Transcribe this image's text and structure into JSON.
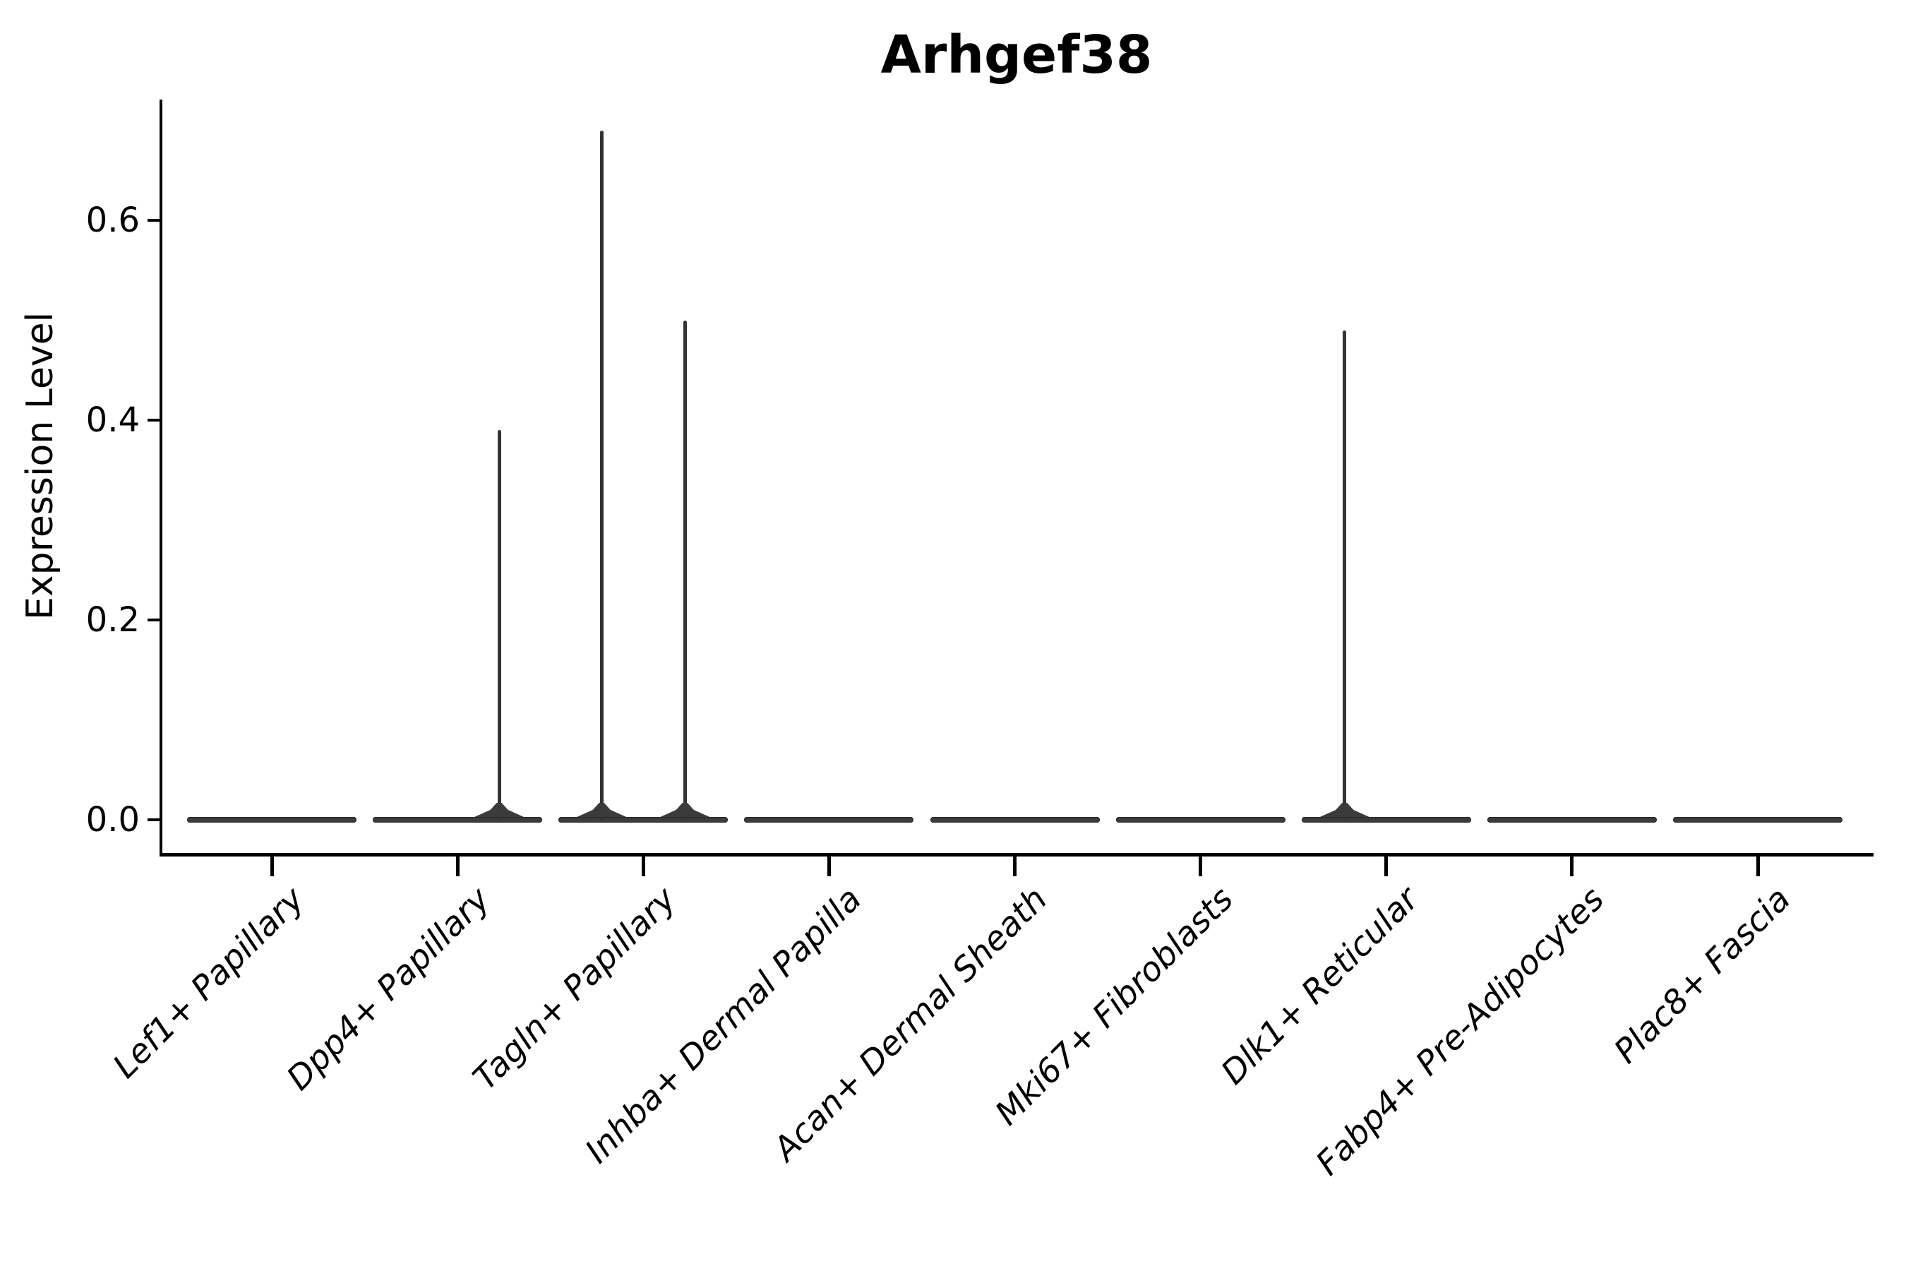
{
  "chart_data": {
    "type": "violin",
    "title": "Arhgef38",
    "ylabel": "Expression Level",
    "xlabel": "",
    "grid": false,
    "legend": null,
    "ylim": [
      0,
      0.72
    ],
    "ytick_labels": [
      "0.0",
      "0.2",
      "0.4",
      "0.6"
    ],
    "ytick_values": [
      0.0,
      0.2,
      0.4,
      0.6
    ],
    "categories": [
      "Lef1+ Papillary",
      "Dpp4+ Papillary",
      "Tagln+ Papillary",
      "Inhba+ Dermal Papilla",
      "Acan+ Dermal Sheath",
      "Mki67+ Fibroblasts",
      "Dlk1+ Reticular",
      "Fabp4+ Pre-Adipocytes",
      "Plac8+ Fascia"
    ],
    "violins": [
      {
        "category": "Lef1+ Papillary",
        "baseline_value": 0.0,
        "spikes": []
      },
      {
        "category": "Dpp4+ Papillary",
        "baseline_value": 0.0,
        "spikes": [
          {
            "side": "right",
            "max_value": 0.39
          }
        ]
      },
      {
        "category": "Tagln+ Papillary",
        "baseline_value": 0.0,
        "spikes": [
          {
            "side": "left",
            "max_value": 0.69
          },
          {
            "side": "right",
            "max_value": 0.5
          }
        ]
      },
      {
        "category": "Inhba+ Dermal Papilla",
        "baseline_value": 0.0,
        "spikes": []
      },
      {
        "category": "Acan+ Dermal Sheath",
        "baseline_value": 0.0,
        "spikes": []
      },
      {
        "category": "Mki67+ Fibroblasts",
        "baseline_value": 0.0,
        "spikes": []
      },
      {
        "category": "Dlk1+ Reticular",
        "baseline_value": 0.0,
        "spikes": [
          {
            "side": "left",
            "max_value": 0.49
          }
        ]
      },
      {
        "category": "Fabp4+ Pre-Adipocytes",
        "baseline_value": 0.0,
        "spikes": []
      },
      {
        "category": "Plac8+ Fascia",
        "baseline_value": 0.0,
        "spikes": []
      }
    ],
    "colors": {
      "violin_fill": "#3b3b3b",
      "violin_edge": "#272727",
      "spike": "#333333",
      "axis": "#000000",
      "text": "#000000",
      "background": "#ffffff"
    }
  }
}
